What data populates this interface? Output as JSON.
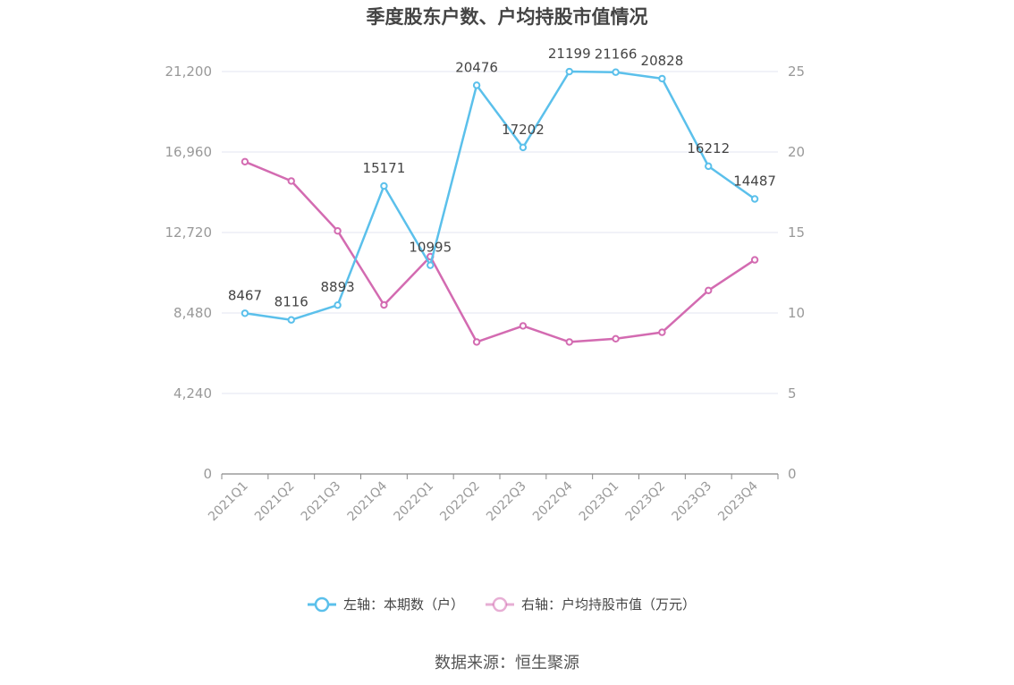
{
  "chart_data": {
    "type": "line",
    "title": "季度股东户数、户均持股市值情况",
    "categories": [
      "2021Q1",
      "2021Q2",
      "2021Q3",
      "2021Q4",
      "2022Q1",
      "2022Q2",
      "2022Q3",
      "2022Q4",
      "2023Q1",
      "2023Q2",
      "2023Q3",
      "2023Q4"
    ],
    "left_axis": {
      "ticks": [
        "0",
        "4,240",
        "8,480",
        "12,720",
        "16,960",
        "21,200"
      ],
      "ylim": [
        0,
        21200
      ]
    },
    "right_axis": {
      "ticks": [
        "0",
        "5",
        "10",
        "15",
        "20",
        "25"
      ],
      "ylim": [
        0,
        25
      ]
    },
    "grid": true,
    "legend_position": "bottom",
    "series": [
      {
        "name": "左轴：本期数（户）",
        "axis": "left",
        "color": "#5bc0eb",
        "values": [
          8467,
          8116,
          8893,
          15171,
          10995,
          20476,
          17202,
          21199,
          21166,
          20828,
          16212,
          14487
        ],
        "labels": [
          "8467",
          "8116",
          "8893",
          "15171",
          "10995",
          "20476",
          "17202",
          "21199",
          "21166",
          "20828",
          "16212",
          "14487"
        ]
      },
      {
        "name": "右轴：户均持股市值（万元）",
        "axis": "right",
        "color": "#d36bb1",
        "values": [
          19.4,
          18.2,
          15.1,
          10.5,
          13.5,
          8.2,
          9.2,
          8.2,
          8.4,
          8.8,
          11.4,
          13.3
        ]
      }
    ]
  },
  "source": "数据来源：恒生聚源"
}
